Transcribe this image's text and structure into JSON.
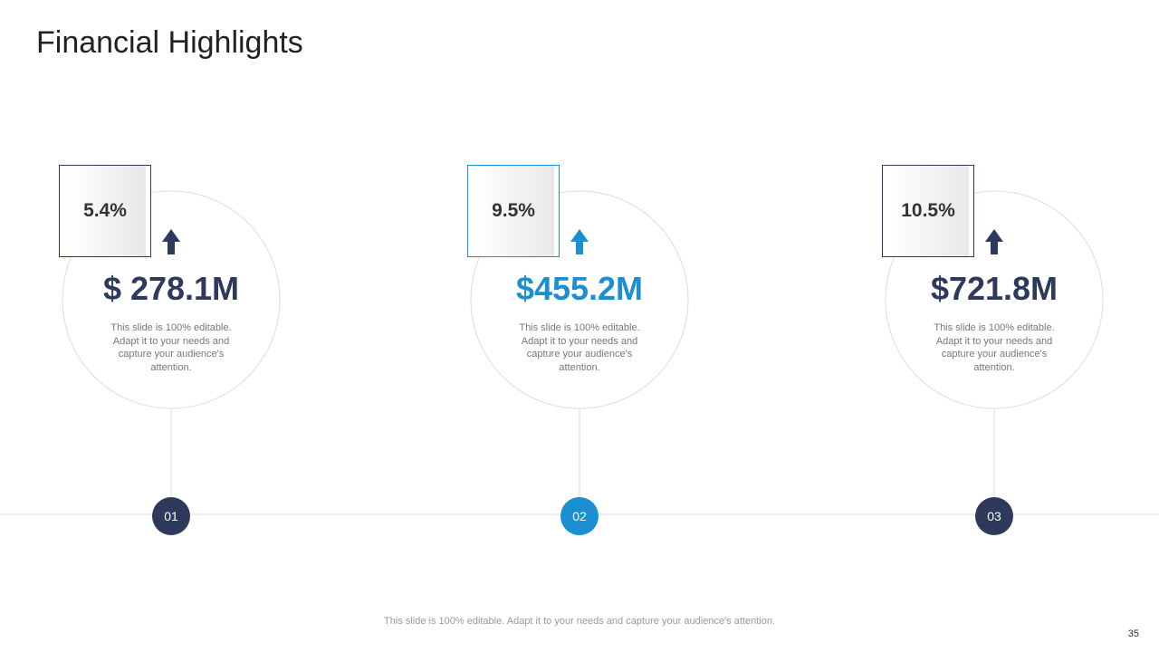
{
  "header": {
    "title": "Financial Highlights"
  },
  "cards": [
    {
      "change": "5.4%",
      "amount": "$ 278.1M",
      "text": "This slide is 100% editable. Adapt it to your needs and capture your audience's attention.",
      "number": "01"
    },
    {
      "change": "9.5%",
      "amount": "$455.2M",
      "text": "This slide is 100% editable. Adapt it to your needs and capture your audience's attention.",
      "number": "02"
    },
    {
      "change": "10.5%",
      "amount": "$721.8M",
      "text": "This slide is 100% editable. Adapt it to your needs and capture your audience's attention.",
      "number": "03"
    }
  ],
  "footer": {
    "note": "This slide is 100% editable. Adapt it to your needs and capture your audience's attention.",
    "page": "35"
  }
}
